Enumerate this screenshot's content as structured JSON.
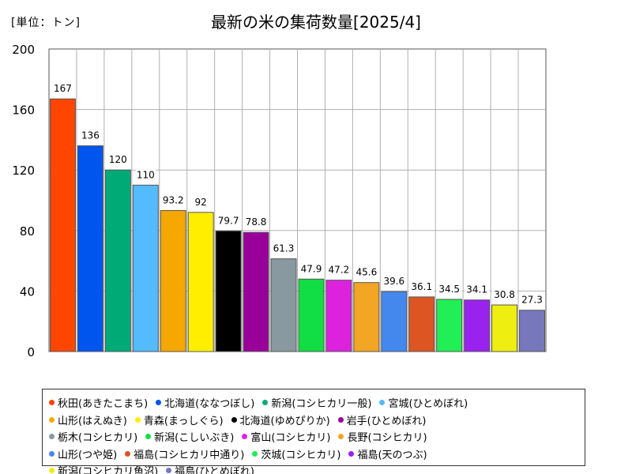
{
  "header": {
    "unit": "[単位：トン]",
    "title": "最新の米の集荷数量[2025/4]"
  },
  "chart_data": {
    "type": "bar",
    "title": "最新の米の集荷数量[2025/4]",
    "ylabel": "[単位：トン]",
    "xlabel": "",
    "ylim": [
      0,
      200
    ],
    "yticks": [
      0,
      40,
      80,
      120,
      160,
      200
    ],
    "grid": true,
    "legend_position": "bottom",
    "categories": [
      "秋田(あきたこまち)",
      "北海道(ななつぼし)",
      "新潟(コシヒカリ一般)",
      "宮城(ひとめぼれ)",
      "山形(はえぬき)",
      "青森(まっしぐら)",
      "北海道(ゆめぴりか)",
      "岩手(ひとめぼれ)",
      "栃木(コシヒカリ)",
      "新潟(こしいぶき)",
      "富山(コシヒカリ)",
      "長野(コシヒカリ)",
      "山形(つや姫)",
      "福島(コシヒカリ中通り)",
      "茨城(コシヒカリ)",
      "福島(天のつぶ)",
      "新潟(コシヒカリ魚沼)",
      "福島(ひとめぼれ)"
    ],
    "values": [
      167,
      136,
      120,
      110,
      93.2,
      92,
      79.7,
      78.8,
      61.3,
      47.9,
      47.2,
      45.6,
      39.6,
      36.1,
      34.5,
      34.1,
      30.8,
      27.3
    ],
    "value_labels": [
      "167",
      "136",
      "120",
      "110",
      "93.2",
      "92",
      "79.7",
      "78.8",
      "61.3",
      "47.9",
      "47.2",
      "45.6",
      "39.6",
      "36.1",
      "34.5",
      "34.1",
      "30.8",
      "27.3"
    ],
    "colors": [
      "#ff4500",
      "#0055ee",
      "#00aa77",
      "#55bbff",
      "#f5a800",
      "#ffee00",
      "#000000",
      "#990099",
      "#8899a0",
      "#11dd44",
      "#dd22dd",
      "#f2a623",
      "#4488ee",
      "#dd5522",
      "#22ee55",
      "#9922ee",
      "#eeee11",
      "#7777bb"
    ]
  }
}
